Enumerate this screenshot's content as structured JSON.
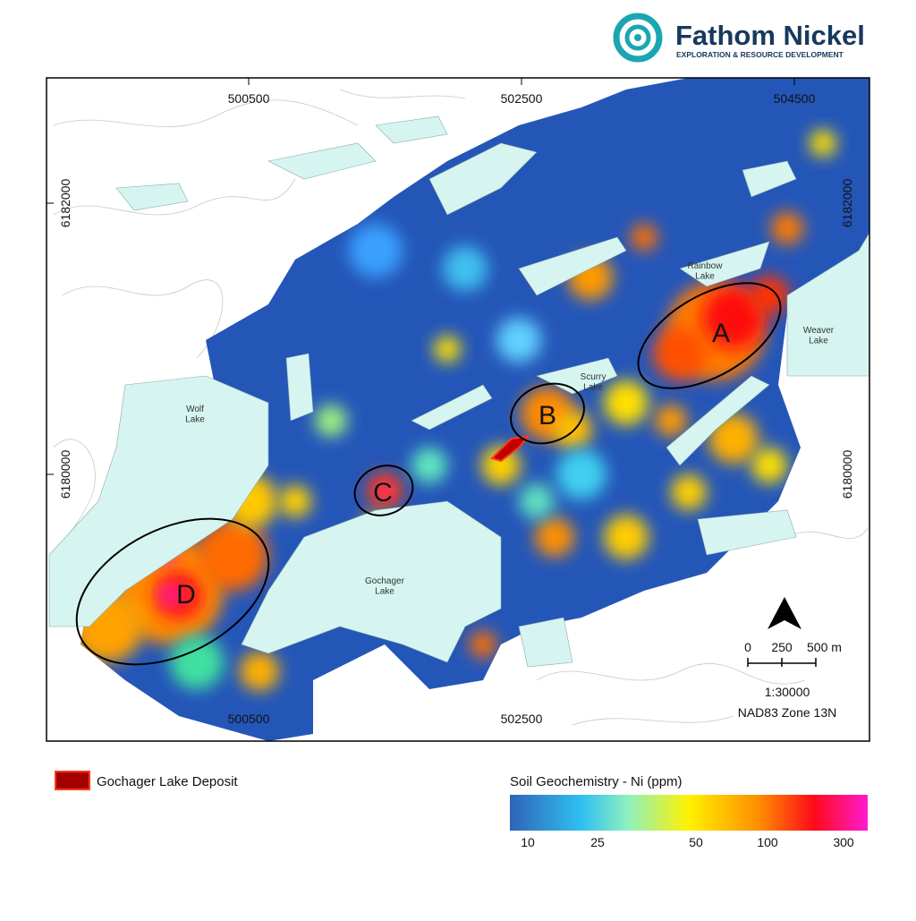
{
  "logo": {
    "name": "Fathom Nickel",
    "tagline": "EXPLORATION & RESOURCE DEVELOPMENT"
  },
  "map": {
    "eastings": [
      500500,
      502500,
      504500
    ],
    "northings": [
      6182000,
      6180000
    ],
    "lakes": [
      "Rainbow\nLake",
      "Weaver\nLake",
      "Scurry\nLake",
      "Wolf\nLake",
      "Gochager\nLake"
    ],
    "targets": [
      "A",
      "B",
      "C",
      "D"
    ],
    "scale_bar": {
      "ticks": [
        0,
        250,
        {
          "value": 500,
          "label": "500 m"
        }
      ]
    },
    "scale": "1:30000",
    "datum": "NAD83 Zone 13N"
  },
  "legend": {
    "deposit": "Gochager Lake Deposit",
    "colorbar": {
      "title": "Soil Geochemistry - Ni (ppm)",
      "ticks": [
        10,
        25,
        50,
        100,
        300
      ]
    }
  }
}
